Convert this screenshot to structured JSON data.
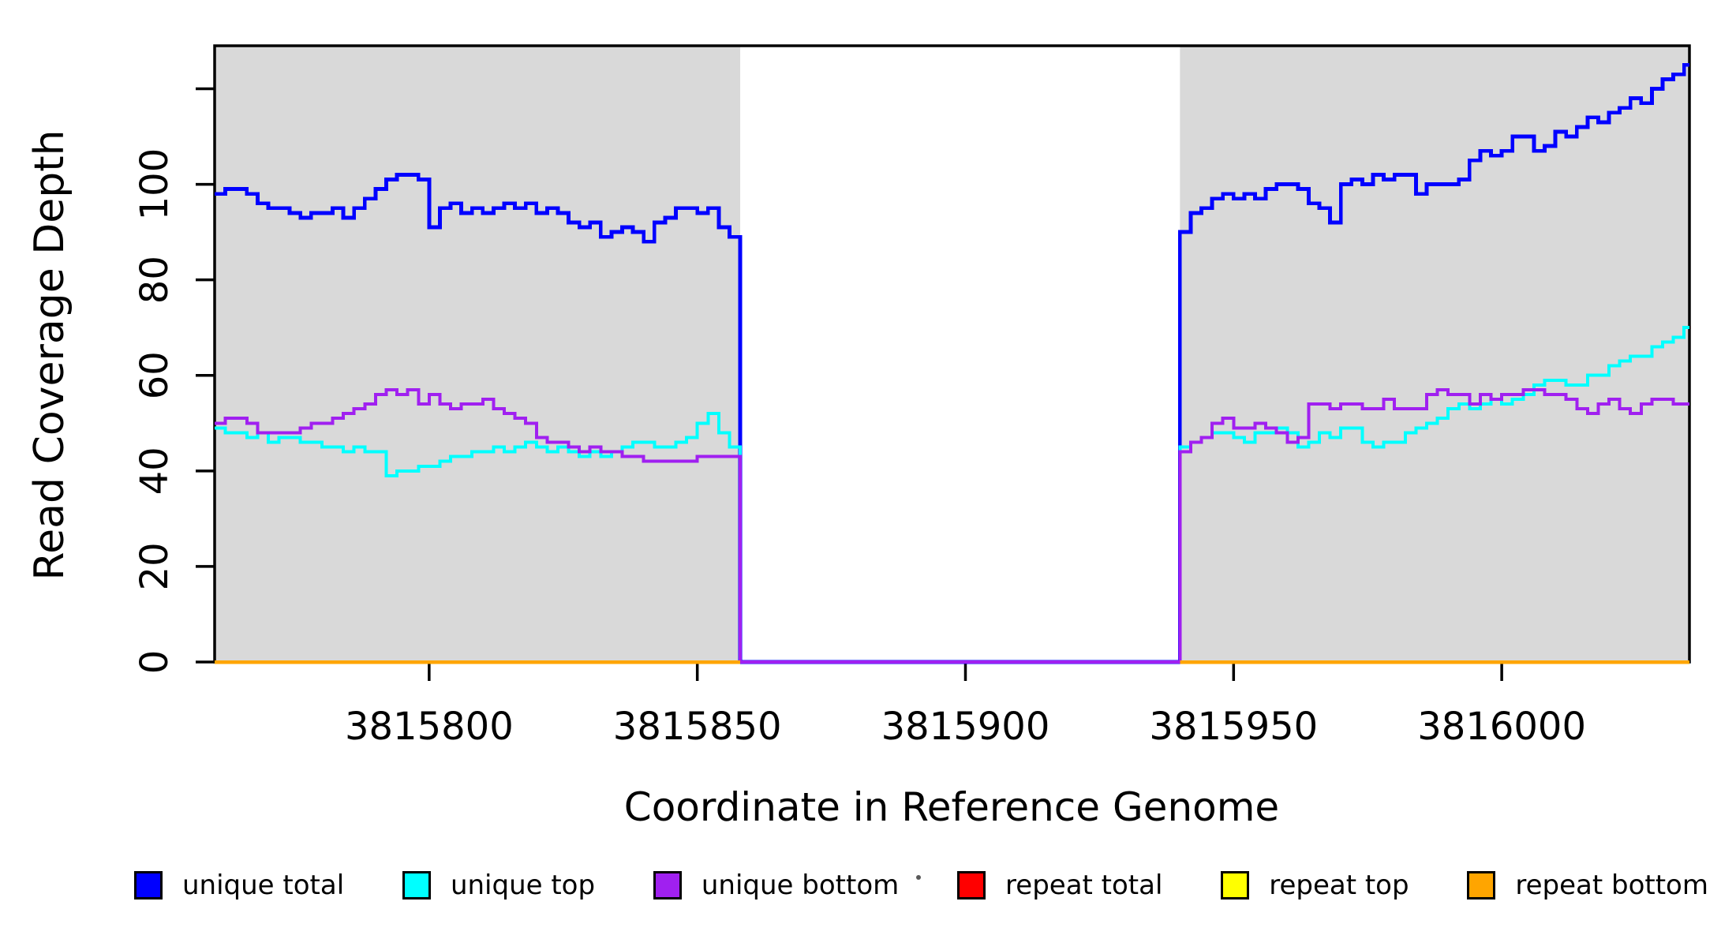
{
  "figure": {
    "x_axis_title": "Coordinate in Reference Genome",
    "y_axis_title": "Read Coverage Depth"
  },
  "colors": {
    "background": "#ffffff",
    "shaded_region": "#d9d9d9",
    "axis": "#000000",
    "unique_total": "#0000ff",
    "unique_top": "#00ffff",
    "unique_bottom": "#a020f0",
    "repeat_total": "#ff0000",
    "repeat_top": "#ffff00",
    "repeat_bottom": "#ffa500"
  },
  "chart_data": {
    "type": "line",
    "subtype": "step-coverage",
    "title": "",
    "xlabel": "Coordinate in Reference Genome",
    "ylabel": "Read Coverage Depth",
    "xlim": [
      3815760,
      3816035
    ],
    "ylim": [
      0,
      129
    ],
    "grid": false,
    "legend_position": "bottom",
    "x_ticks": [
      {
        "value": 3815800,
        "label": "3815800"
      },
      {
        "value": 3815850,
        "label": "3815850"
      },
      {
        "value": 3815900,
        "label": "3815900"
      },
      {
        "value": 3815950,
        "label": "3815950"
      },
      {
        "value": 3816000,
        "label": "3816000"
      }
    ],
    "y_ticks": [
      {
        "value": 0,
        "label": "0"
      },
      {
        "value": 20,
        "label": "20"
      },
      {
        "value": 40,
        "label": "40"
      },
      {
        "value": 60,
        "label": "60"
      },
      {
        "value": 80,
        "label": "80"
      },
      {
        "value": 100,
        "label": "100"
      },
      {
        "value": 120,
        "label": ""
      }
    ],
    "shaded_regions": [
      {
        "start": 3815760,
        "end": 3815858
      },
      {
        "start": 3815940,
        "end": 3816035
      }
    ],
    "gap": {
      "start": 3815858,
      "end": 3815940
    },
    "step_bp": 2,
    "series": [
      {
        "name": "unique total",
        "color": "#0000ff",
        "width": 4.8,
        "zero_in_gap": true,
        "left_start": 3815760,
        "left_values": [
          98,
          99,
          99,
          98,
          96,
          95,
          95,
          94,
          93,
          94,
          94,
          95,
          93,
          95,
          97,
          99,
          101,
          102,
          102,
          101,
          91,
          95,
          96,
          94,
          95,
          94,
          95,
          96,
          95,
          96,
          94,
          95,
          94,
          92,
          91,
          92,
          89,
          90,
          91,
          90,
          88,
          92,
          93,
          95,
          95,
          94,
          95,
          91,
          89
        ],
        "right_start": 3815940,
        "right_values": [
          90,
          94,
          95,
          97,
          98,
          97,
          98,
          97,
          99,
          100,
          100,
          99,
          96,
          95,
          92,
          100,
          101,
          100,
          102,
          101,
          102,
          102,
          98,
          100,
          100,
          100,
          101,
          105,
          107,
          106,
          107,
          110,
          110,
          107,
          108,
          111,
          110,
          112,
          114,
          113,
          115,
          116,
          118,
          117,
          120,
          122,
          123,
          125
        ]
      },
      {
        "name": "unique top",
        "color": "#00ffff",
        "width": 4,
        "zero_in_gap": true,
        "left_start": 3815760,
        "left_values": [
          49,
          48,
          48,
          47,
          48,
          46,
          47,
          47,
          46,
          46,
          45,
          45,
          44,
          45,
          44,
          44,
          39,
          40,
          40,
          41,
          41,
          42,
          43,
          43,
          44,
          44,
          45,
          44,
          45,
          46,
          45,
          44,
          45,
          44,
          43,
          44,
          43,
          44,
          45,
          46,
          46,
          45,
          45,
          46,
          47,
          50,
          52,
          48,
          45
        ],
        "right_start": 3815940,
        "right_values": [
          45,
          46,
          47,
          48,
          48,
          47,
          46,
          48,
          48,
          49,
          48,
          45,
          46,
          48,
          47,
          49,
          49,
          46,
          45,
          46,
          46,
          48,
          49,
          50,
          51,
          53,
          54,
          53,
          54,
          55,
          54,
          55,
          56,
          58,
          59,
          59,
          58,
          58,
          60,
          60,
          62,
          63,
          64,
          64,
          66,
          67,
          68,
          70
        ]
      },
      {
        "name": "unique bottom",
        "color": "#a020f0",
        "width": 4,
        "zero_in_gap": true,
        "left_start": 3815760,
        "left_values": [
          50,
          51,
          51,
          50,
          48,
          48,
          48,
          48,
          49,
          50,
          50,
          51,
          52,
          53,
          54,
          56,
          57,
          56,
          57,
          54,
          56,
          54,
          53,
          54,
          54,
          55,
          53,
          52,
          51,
          50,
          47,
          46,
          46,
          45,
          44,
          45,
          44,
          44,
          43,
          43,
          42,
          42,
          42,
          42,
          42,
          43,
          43,
          43,
          43
        ],
        "right_start": 3815940,
        "right_values": [
          44,
          46,
          47,
          50,
          51,
          49,
          49,
          50,
          49,
          48,
          46,
          47,
          54,
          54,
          53,
          54,
          54,
          53,
          53,
          55,
          53,
          53,
          53,
          56,
          57,
          56,
          56,
          54,
          56,
          55,
          56,
          56,
          57,
          57,
          56,
          56,
          55,
          53,
          52,
          54,
          55,
          53,
          52,
          54,
          55,
          55,
          54,
          54
        ]
      },
      {
        "name": "repeat total",
        "color": "#ff0000",
        "width": 4.5,
        "constant": 0,
        "regions_only": true
      },
      {
        "name": "repeat top",
        "color": "#ffff00",
        "width": 4.5,
        "constant": 0,
        "regions_only": true
      },
      {
        "name": "repeat bottom",
        "color": "#ffa500",
        "width": 4.5,
        "constant": 0,
        "regions_only": true
      }
    ],
    "legend": [
      {
        "label": "unique total",
        "color": "#0000ff"
      },
      {
        "label": "unique top",
        "color": "#00ffff"
      },
      {
        "label": "unique bottom",
        "color": "#a020f0"
      },
      {
        "label": "repeat total",
        "color": "#ff0000"
      },
      {
        "label": "repeat top",
        "color": "#ffff00"
      },
      {
        "label": "repeat bottom",
        "color": "#ffa500"
      }
    ]
  }
}
